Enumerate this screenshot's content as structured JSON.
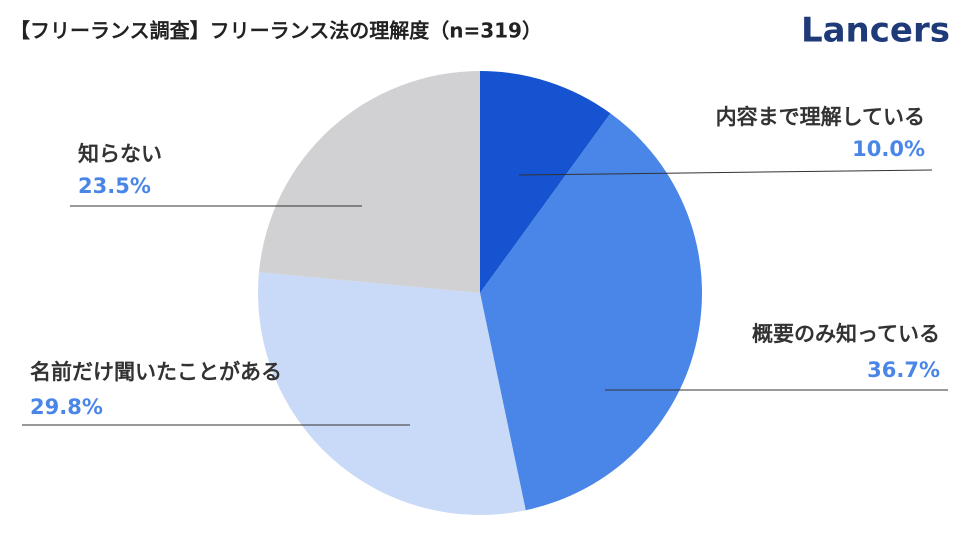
{
  "brand": "Lancers",
  "chart_data": {
    "type": "pie",
    "title": "【フリーランス調査】フリーランス法の理解度（n=319）",
    "categories": [
      "内容まで理解している",
      "概要のみ知っている",
      "名前だけ聞いたことがある",
      "知らない"
    ],
    "values": [
      10.0,
      36.7,
      29.8,
      23.5
    ],
    "value_labels": [
      "10.0%",
      "36.7%",
      "29.8%",
      "23.5%"
    ],
    "colors": [
      "#1553d0",
      "#4a86e8",
      "#c9daf8",
      "#d1d0d3"
    ]
  }
}
